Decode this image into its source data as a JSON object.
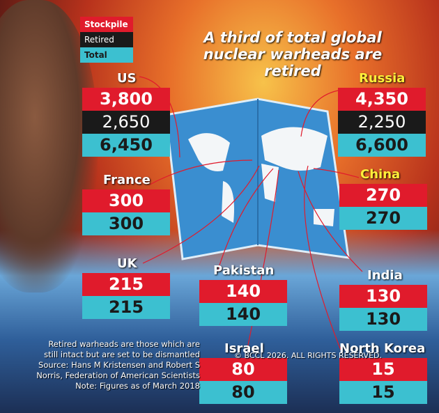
{
  "legend": [
    "Stockpile",
    "Retired",
    "Total"
  ],
  "title": "A third of total global nuclear warheads are retired",
  "countries": [
    {
      "name": "US",
      "stockpile": "3,800",
      "retired": "2,650",
      "total": "6,450"
    },
    {
      "name": "Russia",
      "stockpile": "4,350",
      "retired": "2,250",
      "total": "6,600"
    },
    {
      "name": "France",
      "stockpile": "300",
      "total": "300"
    },
    {
      "name": "China",
      "stockpile": "270",
      "total": "270"
    },
    {
      "name": "UK",
      "stockpile": "215",
      "total": "215"
    },
    {
      "name": "Pakistan",
      "stockpile": "140",
      "total": "140"
    },
    {
      "name": "India",
      "stockpile": "130",
      "total": "130"
    },
    {
      "name": "Israel",
      "stockpile": "80",
      "total": "80"
    },
    {
      "name": "North Korea",
      "stockpile": "15",
      "total": "15"
    }
  ],
  "notes": [
    "Retired warheads are those which are still intact but are set to be dismantled",
    "Source: Hans M Kristensen and Robert S Norris, Federation of American Scientists",
    "Note: Figures as of March 2018"
  ],
  "watermark": "© BCCL 2026. ALL RIGHTS RESERVED."
}
